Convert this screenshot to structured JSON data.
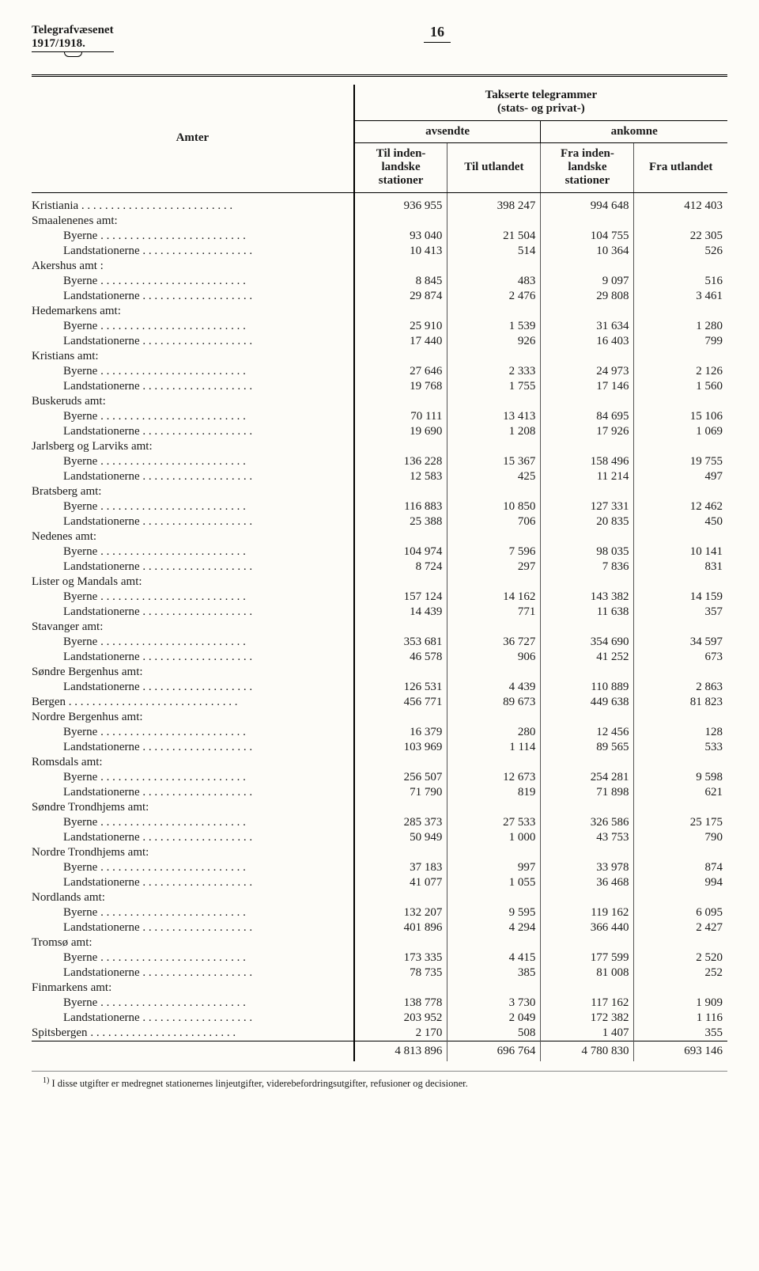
{
  "header": {
    "title_line1": "Telegrafvæsenet",
    "title_line2": "1917/1918.",
    "page_number": "16"
  },
  "table": {
    "top_header": "Takserte telegrammer",
    "top_header_sub": "(stats- og privat-)",
    "col_amter": "Amter",
    "grp_avsendte": "avsendte",
    "grp_ankomne": "ankomne",
    "col1": "Til inden-landske stationer",
    "col2": "Til utlandet",
    "col3": "Fra inden-landske stationer",
    "col4": "Fra utlandet",
    "rows": [
      {
        "label": "Kristiania",
        "indent": 0,
        "v": [
          "936 955",
          "398 247",
          "994 648",
          "412 403"
        ]
      },
      {
        "label": "Smaalenenes amt:",
        "indent": 0,
        "v": [
          "",
          "",
          "",
          ""
        ]
      },
      {
        "label": "Byerne",
        "indent": 1,
        "v": [
          "93 040",
          "21 504",
          "104 755",
          "22 305"
        ]
      },
      {
        "label": "Landstationerne",
        "indent": 1,
        "v": [
          "10 413",
          "514",
          "10 364",
          "526"
        ]
      },
      {
        "label": "Akershus amt :",
        "indent": 0,
        "v": [
          "",
          "",
          "",
          ""
        ]
      },
      {
        "label": "Byerne",
        "indent": 1,
        "v": [
          "8 845",
          "483",
          "9 097",
          "516"
        ]
      },
      {
        "label": "Landstationerne",
        "indent": 1,
        "v": [
          "29 874",
          "2 476",
          "29 808",
          "3 461"
        ]
      },
      {
        "label": "Hedemarkens amt:",
        "indent": 0,
        "v": [
          "",
          "",
          "",
          ""
        ]
      },
      {
        "label": "Byerne",
        "indent": 1,
        "v": [
          "25 910",
          "1 539",
          "31 634",
          "1 280"
        ]
      },
      {
        "label": "Landstationerne",
        "indent": 1,
        "v": [
          "17 440",
          "926",
          "16 403",
          "799"
        ]
      },
      {
        "label": "Kristians amt:",
        "indent": 0,
        "v": [
          "",
          "",
          "",
          ""
        ]
      },
      {
        "label": "Byerne",
        "indent": 1,
        "v": [
          "27 646",
          "2 333",
          "24 973",
          "2 126"
        ]
      },
      {
        "label": "Landstationerne",
        "indent": 1,
        "v": [
          "19 768",
          "1 755",
          "17 146",
          "1 560"
        ]
      },
      {
        "label": "Buskeruds amt:",
        "indent": 0,
        "v": [
          "",
          "",
          "",
          ""
        ]
      },
      {
        "label": "Byerne",
        "indent": 1,
        "v": [
          "70 111",
          "13 413",
          "84 695",
          "15 106"
        ]
      },
      {
        "label": "Landstationerne",
        "indent": 1,
        "v": [
          "19 690",
          "1 208",
          "17 926",
          "1 069"
        ]
      },
      {
        "label": "Jarlsberg og Larviks amt:",
        "indent": 0,
        "v": [
          "",
          "",
          "",
          ""
        ]
      },
      {
        "label": "Byerne",
        "indent": 1,
        "v": [
          "136 228",
          "15 367",
          "158 496",
          "19 755"
        ]
      },
      {
        "label": "Landstationerne",
        "indent": 1,
        "v": [
          "12 583",
          "425",
          "11 214",
          "497"
        ]
      },
      {
        "label": "Bratsberg amt:",
        "indent": 0,
        "v": [
          "",
          "",
          "",
          ""
        ]
      },
      {
        "label": "Byerne",
        "indent": 1,
        "v": [
          "116 883",
          "10 850",
          "127 331",
          "12 462"
        ]
      },
      {
        "label": "Landstationerne",
        "indent": 1,
        "v": [
          "25 388",
          "706",
          "20 835",
          "450"
        ]
      },
      {
        "label": "Nedenes amt:",
        "indent": 0,
        "v": [
          "",
          "",
          "",
          ""
        ]
      },
      {
        "label": "Byerne",
        "indent": 1,
        "v": [
          "104 974",
          "7 596",
          "98 035",
          "10 141"
        ]
      },
      {
        "label": "Landstationerne",
        "indent": 1,
        "v": [
          "8 724",
          "297",
          "7 836",
          "831"
        ]
      },
      {
        "label": "Lister og Mandals amt:",
        "indent": 0,
        "v": [
          "",
          "",
          "",
          ""
        ]
      },
      {
        "label": "Byerne",
        "indent": 1,
        "v": [
          "157 124",
          "14 162",
          "143 382",
          "14 159"
        ]
      },
      {
        "label": "Landstationerne",
        "indent": 1,
        "v": [
          "14 439",
          "771",
          "11 638",
          "357"
        ]
      },
      {
        "label": "Stavanger amt:",
        "indent": 0,
        "v": [
          "",
          "",
          "",
          ""
        ]
      },
      {
        "label": "Byerne",
        "indent": 1,
        "v": [
          "353 681",
          "36 727",
          "354 690",
          "34 597"
        ]
      },
      {
        "label": "Landstationerne",
        "indent": 1,
        "v": [
          "46 578",
          "906",
          "41 252",
          "673"
        ]
      },
      {
        "label": "Søndre Bergenhus amt:",
        "indent": 0,
        "v": [
          "",
          "",
          "",
          ""
        ]
      },
      {
        "label": "Landstationerne",
        "indent": 1,
        "v": [
          "126 531",
          "4 439",
          "110 889",
          "2 863"
        ]
      },
      {
        "label": "Bergen",
        "indent": 0,
        "v": [
          "456 771",
          "89 673",
          "449 638",
          "81 823"
        ]
      },
      {
        "label": "Nordre Bergenhus amt:",
        "indent": 0,
        "v": [
          "",
          "",
          "",
          ""
        ]
      },
      {
        "label": "Byerne",
        "indent": 1,
        "v": [
          "16 379",
          "280",
          "12 456",
          "128"
        ]
      },
      {
        "label": "Landstationerne",
        "indent": 1,
        "v": [
          "103 969",
          "1 114",
          "89 565",
          "533"
        ]
      },
      {
        "label": "Romsdals amt:",
        "indent": 0,
        "v": [
          "",
          "",
          "",
          ""
        ]
      },
      {
        "label": "Byerne",
        "indent": 1,
        "v": [
          "256 507",
          "12 673",
          "254 281",
          "9 598"
        ]
      },
      {
        "label": "Landstationerne",
        "indent": 1,
        "v": [
          "71 790",
          "819",
          "71 898",
          "621"
        ]
      },
      {
        "label": "Søndre Trondhjems amt:",
        "indent": 0,
        "v": [
          "",
          "",
          "",
          ""
        ]
      },
      {
        "label": "Byerne",
        "indent": 1,
        "v": [
          "285 373",
          "27 533",
          "326 586",
          "25 175"
        ]
      },
      {
        "label": "Landstationerne",
        "indent": 1,
        "v": [
          "50 949",
          "1 000",
          "43 753",
          "790"
        ]
      },
      {
        "label": "Nordre Trondhjems amt:",
        "indent": 0,
        "v": [
          "",
          "",
          "",
          ""
        ]
      },
      {
        "label": "Byerne",
        "indent": 1,
        "v": [
          "37 183",
          "997",
          "33 978",
          "874"
        ]
      },
      {
        "label": "Landstationerne",
        "indent": 1,
        "v": [
          "41 077",
          "1 055",
          "36 468",
          "994"
        ]
      },
      {
        "label": "Nordlands amt:",
        "indent": 0,
        "v": [
          "",
          "",
          "",
          ""
        ]
      },
      {
        "label": "Byerne",
        "indent": 1,
        "v": [
          "132 207",
          "9 595",
          "119 162",
          "6 095"
        ]
      },
      {
        "label": "Landstationerne",
        "indent": 1,
        "v": [
          "401 896",
          "4 294",
          "366 440",
          "2 427"
        ]
      },
      {
        "label": "Tromsø amt:",
        "indent": 0,
        "v": [
          "",
          "",
          "",
          ""
        ]
      },
      {
        "label": "Byerne",
        "indent": 1,
        "v": [
          "173 335",
          "4 415",
          "177 599",
          "2 520"
        ]
      },
      {
        "label": "Landstationerne",
        "indent": 1,
        "v": [
          "78 735",
          "385",
          "81 008",
          "252"
        ]
      },
      {
        "label": "Finmarkens amt:",
        "indent": 0,
        "v": [
          "",
          "",
          "",
          ""
        ]
      },
      {
        "label": "Byerne",
        "indent": 1,
        "v": [
          "138 778",
          "3 730",
          "117 162",
          "1 909"
        ]
      },
      {
        "label": "Landstationerne",
        "indent": 1,
        "v": [
          "203 952",
          "2 049",
          "172 382",
          "1 116"
        ]
      },
      {
        "label": "Spitsbergen",
        "indent": 0,
        "v": [
          "2 170",
          "508",
          "1 407",
          "355"
        ]
      }
    ],
    "totals": [
      "4 813 896",
      "696 764",
      "4 780 830",
      "693 146"
    ]
  },
  "footnote": {
    "marker": "1)",
    "text": "I disse utgifter er medregnet stationernes linjeutgifter, viderebefordringsutgifter, refusioner og decisioner."
  }
}
